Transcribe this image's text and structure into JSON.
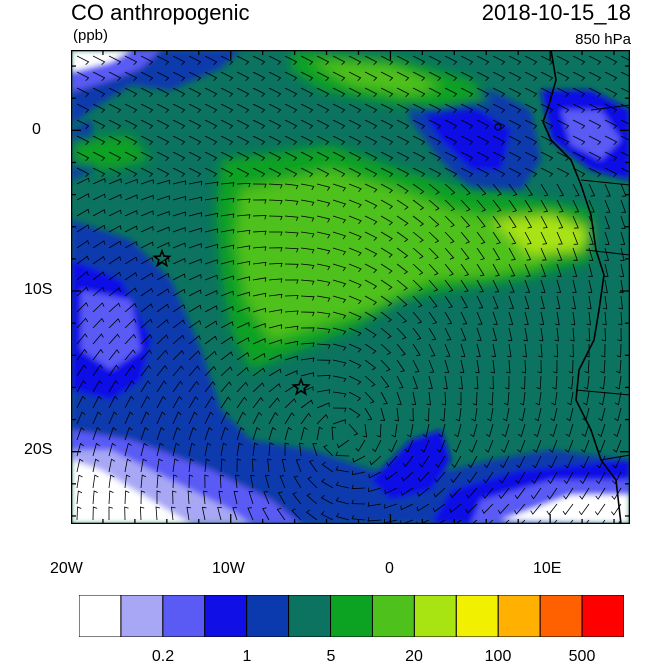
{
  "header": {
    "title": "CO anthropogenic",
    "units": "(ppb)",
    "datetime": "2018-10-15_18",
    "level": "850 hPa"
  },
  "axes": {
    "lon_labels": [
      "20W",
      "10W",
      "0",
      "10E"
    ],
    "lat_labels": [
      "0",
      "10S",
      "20S"
    ],
    "lon_range": [
      -20,
      15
    ],
    "lat_range": [
      -24.5,
      5
    ]
  },
  "markers": [
    {
      "name": "star-marker-1",
      "lon": -14.3,
      "lat": -8.0
    },
    {
      "name": "star-marker-2",
      "lon": -5.6,
      "lat": -16.0
    }
  ],
  "colorbar": {
    "colors": [
      "#ffffff",
      "#a7a7f5",
      "#5a5af5",
      "#1010e6",
      "#0a3aad",
      "#0b7360",
      "#0ca323",
      "#4fc11d",
      "#a8e312",
      "#f0f000",
      "#ffb000",
      "#ff6000",
      "#ff0000"
    ],
    "labels": [
      "0.2",
      "1",
      "5",
      "20",
      "100",
      "500"
    ]
  }
}
